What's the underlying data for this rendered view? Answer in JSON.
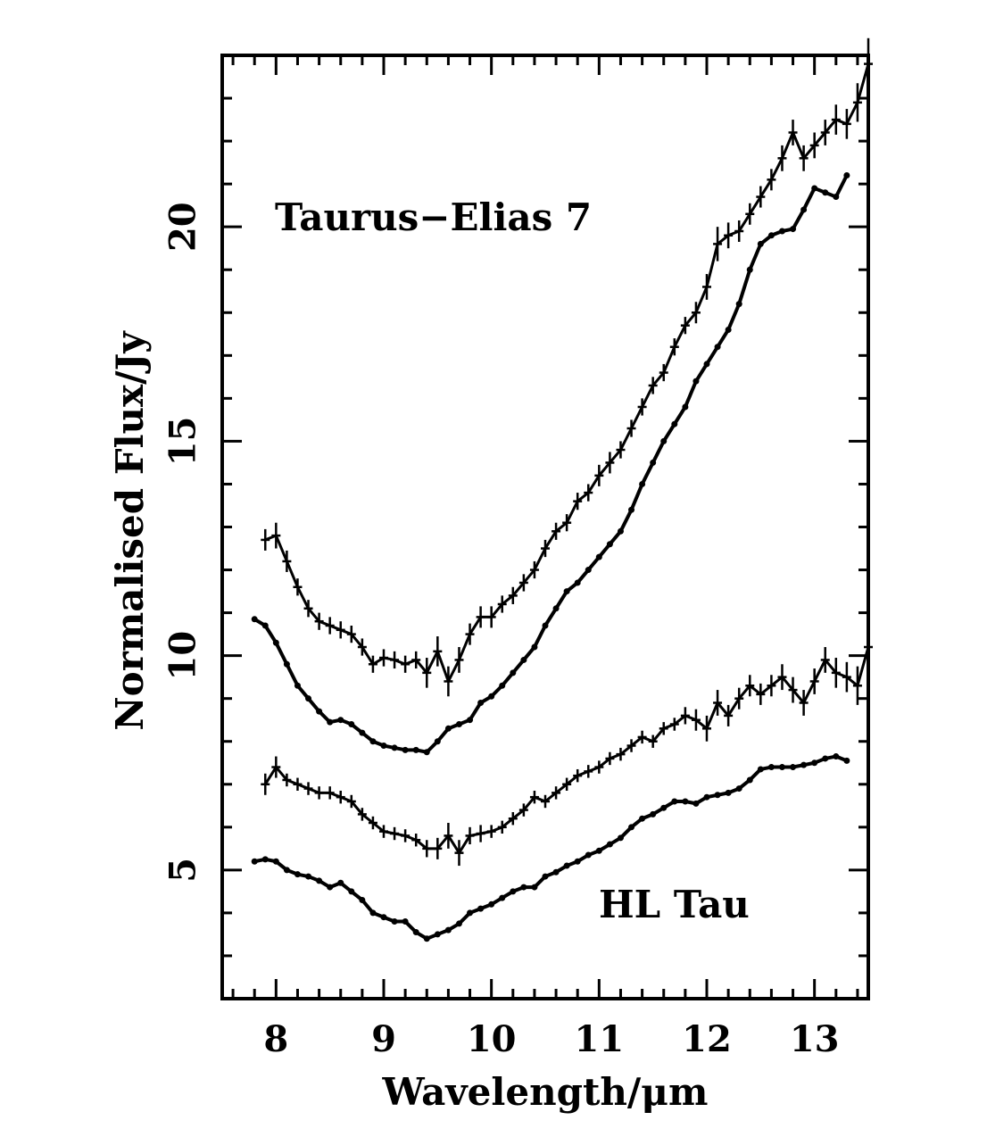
{
  "chart_data": {
    "type": "line",
    "title": "",
    "xlabel": "Wavelength/μm",
    "ylabel": "Normalised Flux/Jy",
    "xlim": [
      7.5,
      13.5
    ],
    "ylim": [
      2.0,
      24.0
    ],
    "x_ticks": [
      8,
      9,
      10,
      11,
      12,
      13
    ],
    "y_ticks": [
      5,
      10,
      15,
      20
    ],
    "grid": false,
    "legend": "none",
    "annotations": [
      {
        "text": "Taurus−Elias 7",
        "x": 7.95,
        "y": 19.9
      },
      {
        "text": "HL Tau",
        "x": 11.4,
        "y": 4.0
      }
    ],
    "series": [
      {
        "error_bars": true,
        "x": [
          7.9,
          8.0,
          8.1,
          8.2,
          8.3,
          8.4,
          8.5,
          8.6,
          8.7,
          8.8,
          8.9,
          9.0,
          9.1,
          9.2,
          9.3,
          9.4,
          9.5,
          9.6,
          9.7,
          9.8,
          9.9,
          10.0,
          10.1,
          10.2,
          10.3,
          10.4,
          10.5,
          10.6,
          10.7,
          10.8,
          10.9,
          11.0,
          11.1,
          11.2,
          11.3,
          11.4,
          11.5,
          11.6,
          11.7,
          11.8,
          11.9,
          12.0,
          12.1,
          12.2,
          12.3,
          12.4,
          12.5,
          12.6,
          12.7,
          12.8,
          12.9,
          13.0,
          13.1,
          13.2,
          13.3,
          13.4,
          13.5
        ],
        "y": [
          12.7,
          12.8,
          12.2,
          11.6,
          11.1,
          10.8,
          10.7,
          10.6,
          10.5,
          10.2,
          9.8,
          9.95,
          9.9,
          9.8,
          9.9,
          9.6,
          10.1,
          9.4,
          9.9,
          10.5,
          10.9,
          10.9,
          11.2,
          11.4,
          11.7,
          12.0,
          12.5,
          12.9,
          13.1,
          13.6,
          13.8,
          14.2,
          14.5,
          14.8,
          15.3,
          15.8,
          16.3,
          16.6,
          17.2,
          17.7,
          18.0,
          18.6,
          19.6,
          19.8,
          19.9,
          20.3,
          20.7,
          21.1,
          21.6,
          22.2,
          21.6,
          21.9,
          22.2,
          22.5,
          22.4,
          22.9,
          23.8
        ],
        "err": [
          0.25,
          0.3,
          0.25,
          0.2,
          0.2,
          0.2,
          0.2,
          0.2,
          0.2,
          0.2,
          0.2,
          0.2,
          0.2,
          0.2,
          0.2,
          0.35,
          0.35,
          0.35,
          0.3,
          0.25,
          0.25,
          0.25,
          0.2,
          0.2,
          0.2,
          0.2,
          0.2,
          0.2,
          0.2,
          0.2,
          0.2,
          0.25,
          0.25,
          0.2,
          0.2,
          0.2,
          0.2,
          0.2,
          0.2,
          0.2,
          0.25,
          0.3,
          0.4,
          0.3,
          0.25,
          0.25,
          0.25,
          0.25,
          0.3,
          0.3,
          0.3,
          0.3,
          0.3,
          0.35,
          0.35,
          0.45,
          0.6
        ]
      },
      {
        "error_bars": false,
        "x": [
          7.8,
          7.9,
          8.0,
          8.1,
          8.2,
          8.3,
          8.4,
          8.5,
          8.6,
          8.7,
          8.8,
          8.9,
          9.0,
          9.1,
          9.2,
          9.3,
          9.4,
          9.5,
          9.6,
          9.7,
          9.8,
          9.9,
          10.0,
          10.1,
          10.2,
          10.3,
          10.4,
          10.5,
          10.6,
          10.7,
          10.8,
          10.9,
          11.0,
          11.1,
          11.2,
          11.3,
          11.4,
          11.5,
          11.6,
          11.7,
          11.8,
          11.9,
          12.0,
          12.1,
          12.2,
          12.3,
          12.4,
          12.5,
          12.6,
          12.7,
          12.8,
          12.9,
          13.0,
          13.1,
          13.2,
          13.3
        ],
        "y": [
          10.85,
          10.7,
          10.3,
          9.8,
          9.3,
          9.0,
          8.7,
          8.45,
          8.5,
          8.4,
          8.2,
          8.0,
          7.9,
          7.85,
          7.8,
          7.8,
          7.75,
          8.0,
          8.3,
          8.4,
          8.5,
          8.9,
          9.05,
          9.3,
          9.6,
          9.9,
          10.2,
          10.7,
          11.1,
          11.5,
          11.7,
          12.0,
          12.3,
          12.6,
          12.9,
          13.4,
          14.0,
          14.5,
          15.0,
          15.4,
          15.8,
          16.4,
          16.8,
          17.2,
          17.6,
          18.2,
          19.0,
          19.6,
          19.8,
          19.9,
          19.95,
          20.4,
          20.9,
          20.8,
          20.7,
          21.2
        ]
      },
      {
        "error_bars": true,
        "x": [
          7.9,
          8.0,
          8.1,
          8.2,
          8.3,
          8.4,
          8.5,
          8.6,
          8.7,
          8.8,
          8.9,
          9.0,
          9.1,
          9.2,
          9.3,
          9.4,
          9.5,
          9.6,
          9.7,
          9.8,
          9.9,
          10.0,
          10.1,
          10.2,
          10.3,
          10.4,
          10.5,
          10.6,
          10.7,
          10.8,
          10.9,
          11.0,
          11.1,
          11.2,
          11.3,
          11.4,
          11.5,
          11.6,
          11.7,
          11.8,
          11.9,
          12.0,
          12.1,
          12.2,
          12.3,
          12.4,
          12.5,
          12.6,
          12.7,
          12.8,
          12.9,
          13.0,
          13.1,
          13.2,
          13.3,
          13.4,
          13.5
        ],
        "y": [
          7.0,
          7.4,
          7.1,
          7.0,
          6.9,
          6.8,
          6.8,
          6.7,
          6.6,
          6.3,
          6.1,
          5.9,
          5.85,
          5.8,
          5.7,
          5.5,
          5.5,
          5.8,
          5.4,
          5.8,
          5.85,
          5.9,
          6.0,
          6.2,
          6.4,
          6.7,
          6.6,
          6.8,
          7.0,
          7.2,
          7.3,
          7.4,
          7.6,
          7.7,
          7.9,
          8.1,
          8.0,
          8.3,
          8.4,
          8.6,
          8.5,
          8.3,
          8.9,
          8.6,
          9.0,
          9.3,
          9.1,
          9.3,
          9.5,
          9.2,
          8.9,
          9.4,
          9.9,
          9.6,
          9.5,
          9.3,
          10.2
        ],
        "err": [
          0.25,
          0.25,
          0.15,
          0.15,
          0.15,
          0.15,
          0.15,
          0.15,
          0.15,
          0.15,
          0.15,
          0.15,
          0.15,
          0.15,
          0.15,
          0.2,
          0.25,
          0.3,
          0.3,
          0.2,
          0.2,
          0.15,
          0.15,
          0.15,
          0.15,
          0.15,
          0.15,
          0.15,
          0.15,
          0.15,
          0.15,
          0.15,
          0.15,
          0.15,
          0.15,
          0.15,
          0.15,
          0.15,
          0.15,
          0.2,
          0.25,
          0.3,
          0.3,
          0.25,
          0.25,
          0.25,
          0.25,
          0.25,
          0.3,
          0.3,
          0.3,
          0.3,
          0.3,
          0.35,
          0.35,
          0.45,
          0.6
        ]
      },
      {
        "error_bars": false,
        "x": [
          7.8,
          7.9,
          8.0,
          8.1,
          8.2,
          8.3,
          8.4,
          8.5,
          8.6,
          8.7,
          8.8,
          8.9,
          9.0,
          9.1,
          9.2,
          9.3,
          9.4,
          9.5,
          9.6,
          9.7,
          9.8,
          9.9,
          10.0,
          10.1,
          10.2,
          10.3,
          10.4,
          10.5,
          10.6,
          10.7,
          10.8,
          10.9,
          11.0,
          11.1,
          11.2,
          11.3,
          11.4,
          11.5,
          11.6,
          11.7,
          11.8,
          11.9,
          12.0,
          12.1,
          12.2,
          12.3,
          12.4,
          12.5,
          12.6,
          12.7,
          12.8,
          12.9,
          13.0,
          13.1,
          13.2,
          13.3
        ],
        "y": [
          5.2,
          5.25,
          5.2,
          5.0,
          4.9,
          4.85,
          4.75,
          4.6,
          4.7,
          4.5,
          4.3,
          4.0,
          3.9,
          3.8,
          3.8,
          3.55,
          3.4,
          3.5,
          3.6,
          3.75,
          4.0,
          4.1,
          4.2,
          4.35,
          4.5,
          4.6,
          4.6,
          4.85,
          4.95,
          5.1,
          5.2,
          5.35,
          5.45,
          5.6,
          5.75,
          6.0,
          6.2,
          6.3,
          6.45,
          6.6,
          6.6,
          6.55,
          6.7,
          6.75,
          6.8,
          6.9,
          7.1,
          7.35,
          7.4,
          7.4,
          7.4,
          7.45,
          7.5,
          7.6,
          7.65,
          7.55
        ]
      }
    ]
  }
}
